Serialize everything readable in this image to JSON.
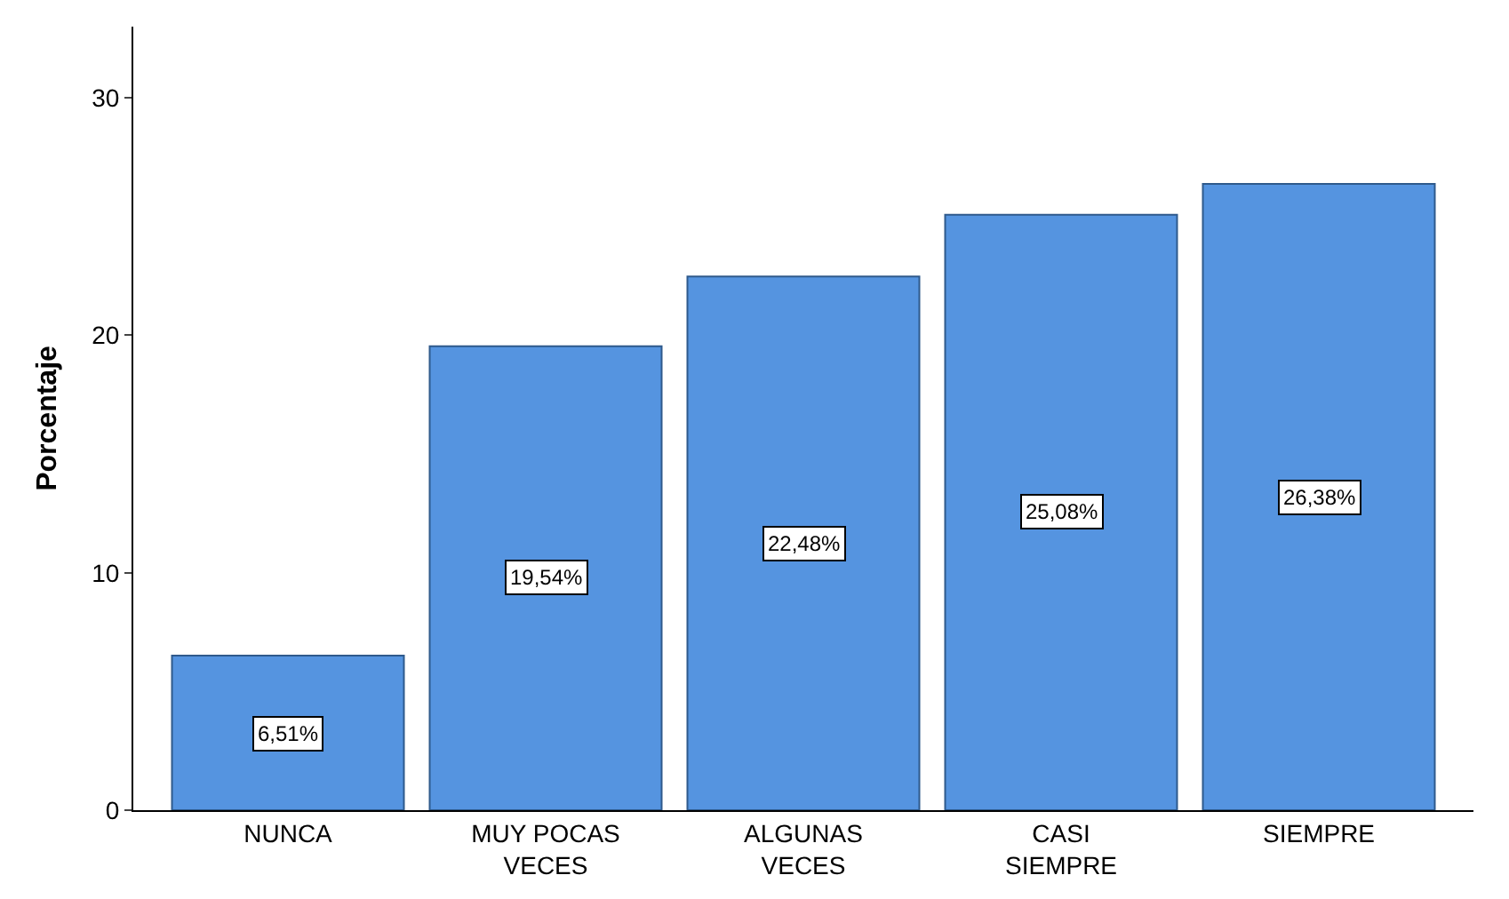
{
  "chart_data": {
    "type": "bar",
    "ylabel": "Porcentaje",
    "categories": [
      "NUNCA",
      "MUY POCAS VECES",
      "ALGUNAS VECES",
      "CASI SIEMPRE",
      "SIEMPRE"
    ],
    "values": [
      6.51,
      19.54,
      22.48,
      25.08,
      26.38
    ],
    "value_labels": [
      "6,51%",
      "19,54%",
      "22,48%",
      "25,08%",
      "26,38%"
    ],
    "color": "#5594e0",
    "ylim": [
      0,
      33
    ],
    "yticks": [
      0,
      10,
      20,
      30
    ]
  }
}
